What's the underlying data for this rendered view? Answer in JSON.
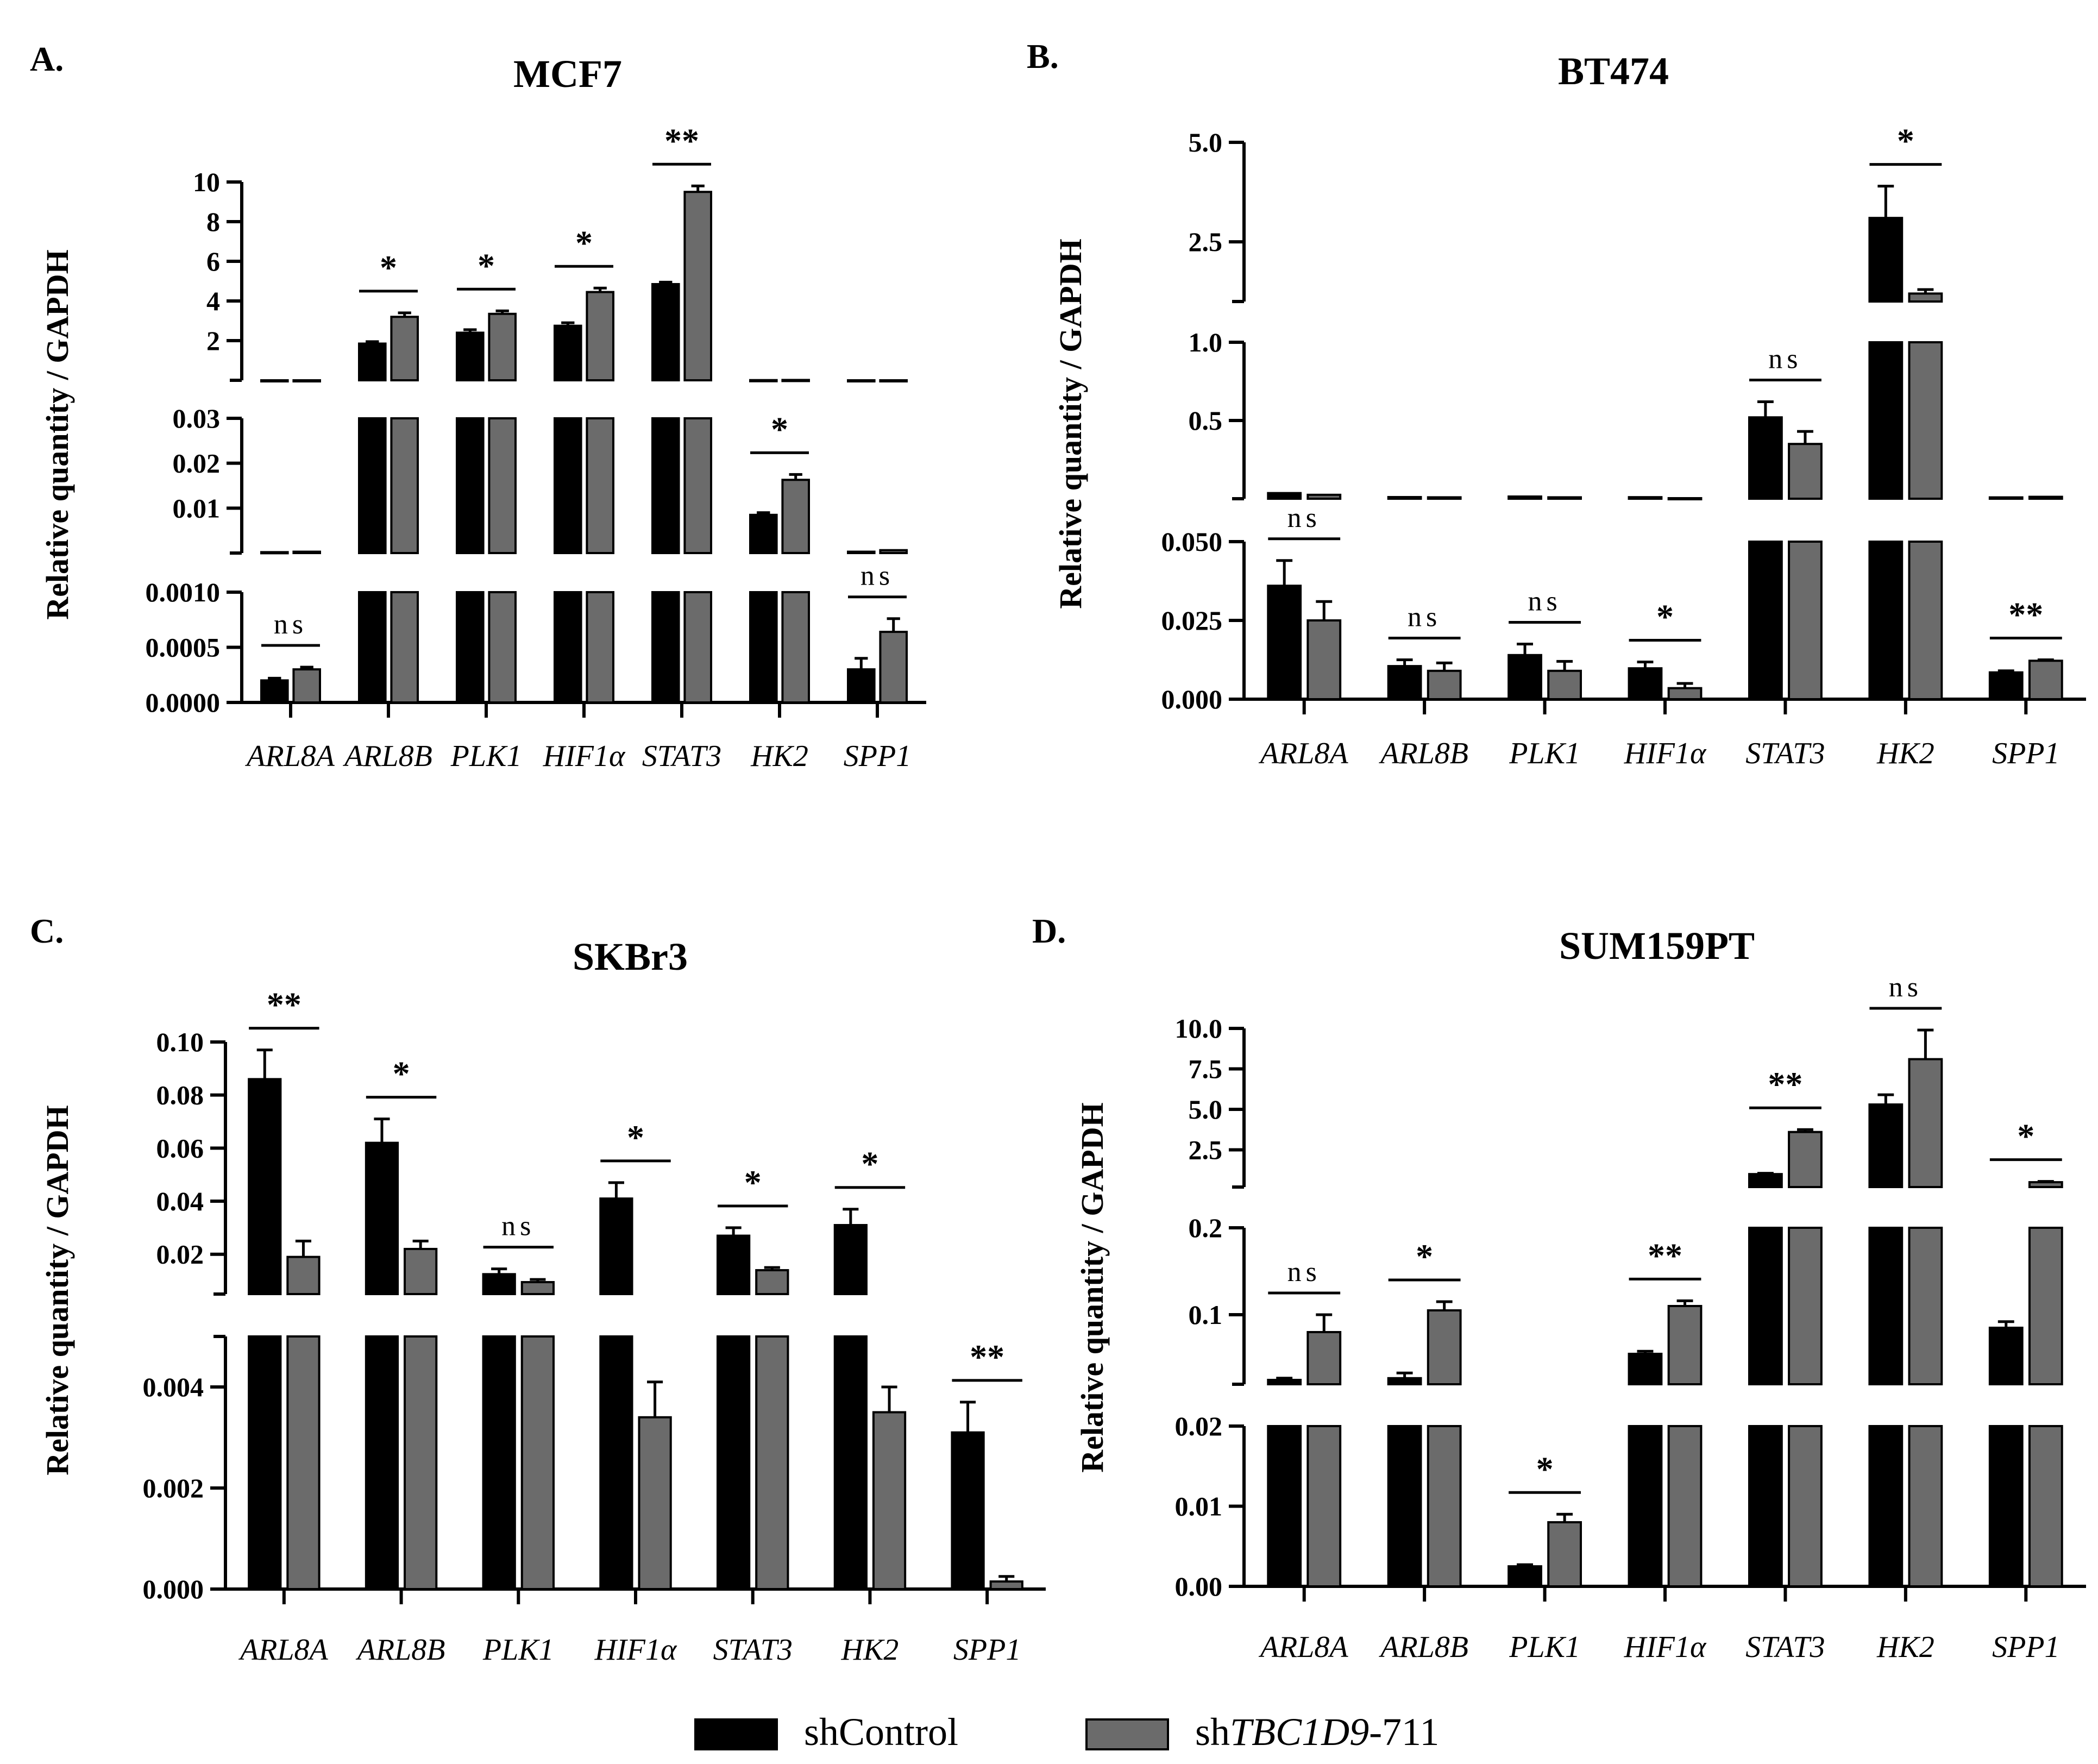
{
  "colors": {
    "shControl": "#000000",
    "shTBC1D9": "#6b6b6b",
    "axis": "#000000"
  },
  "legend": {
    "items": [
      {
        "name": "shControl",
        "label_parts": [
          "shControl"
        ]
      },
      {
        "name": "shTBC1D9-711",
        "label_parts": [
          "sh",
          "TBC1D9",
          "-711"
        ]
      }
    ]
  },
  "chart_data": [
    {
      "type": "bar",
      "panel_letter": "A.",
      "title": "MCF7",
      "ylabel": "Relative quantity / GAPDH",
      "categories": [
        "ARL8A",
        "ARL8B",
        "PLK1",
        "HIF1α",
        "STAT3",
        "HK2",
        "SPP1"
      ],
      "series": [
        {
          "name": "shControl",
          "values": [
            0.0002,
            1.85,
            2.4,
            2.75,
            4.85,
            0.0085,
            0.0003
          ],
          "errors": [
            2e-05,
            0.1,
            0.15,
            0.15,
            0.1,
            0.0005,
            0.0001
          ]
        },
        {
          "name": "shTBC1D9-711",
          "values": [
            0.0003,
            3.2,
            3.35,
            4.45,
            9.5,
            0.0163,
            0.00064
          ],
          "errors": [
            2e-05,
            0.2,
            0.15,
            0.2,
            0.3,
            0.0012,
            0.00012
          ]
        }
      ],
      "significance": [
        "ns",
        "*",
        "*",
        "*",
        "**",
        "*",
        "ns"
      ],
      "y_segments": [
        {
          "range": [
            0,
            0.001
          ],
          "ticks": [
            "0.0000",
            "0.0005",
            "0.0010"
          ],
          "tick_values": [
            0,
            0.0005,
            0.001
          ]
        },
        {
          "range": [
            0,
            0.03
          ],
          "ticks": [
            "0.01",
            "0.02",
            "0.03"
          ],
          "tick_values": [
            0.01,
            0.02,
            0.03
          ]
        },
        {
          "range": [
            0,
            10
          ],
          "ticks": [
            "2",
            "4",
            "6",
            "8",
            "10"
          ],
          "tick_values": [
            2,
            4,
            6,
            8,
            10
          ]
        }
      ]
    },
    {
      "type": "bar",
      "panel_letter": "B.",
      "title": "BT474",
      "ylabel": "Relative quantity / GAPDH",
      "categories": [
        "ARL8A",
        "ARL8B",
        "PLK1",
        "HIF1α",
        "STAT3",
        "HK2",
        "SPP1"
      ],
      "series": [
        {
          "name": "shControl",
          "values": [
            0.036,
            0.0105,
            0.014,
            0.0098,
            0.52,
            3.1,
            0.0085
          ],
          "errors": [
            0.008,
            0.002,
            0.0035,
            0.002,
            0.1,
            0.8,
            0.0005
          ]
        },
        {
          "name": "shTBC1D9-711",
          "values": [
            0.025,
            0.009,
            0.009,
            0.0035,
            0.35,
            1.2,
            0.0122
          ],
          "errors": [
            0.006,
            0.0025,
            0.003,
            0.0015,
            0.08,
            0.1,
            0.0003
          ]
        }
      ],
      "significance": [
        "ns",
        "ns",
        "ns",
        "*",
        "ns",
        "*",
        "**"
      ],
      "y_segments": [
        {
          "range": [
            0,
            0.05
          ],
          "ticks": [
            "0.000",
            "0.025",
            "0.050"
          ],
          "tick_values": [
            0,
            0.025,
            0.05
          ]
        },
        {
          "range": [
            0,
            1.0
          ],
          "ticks": [
            "0.5",
            "1.0"
          ],
          "tick_values": [
            0.5,
            1.0
          ]
        },
        {
          "range": [
            1.0,
            5.0
          ],
          "ticks": [
            "2.5",
            "5.0"
          ],
          "tick_values": [
            2.5,
            5.0
          ]
        }
      ]
    },
    {
      "type": "bar",
      "panel_letter": "C.",
      "title": "SKBr3",
      "ylabel": "Relative quantity / GAPDH",
      "categories": [
        "ARL8A",
        "ARL8B",
        "PLK1",
        "HIF1α",
        "STAT3",
        "HK2",
        "SPP1"
      ],
      "series": [
        {
          "name": "shControl",
          "values": [
            0.086,
            0.062,
            0.0125,
            0.041,
            0.027,
            0.031,
            0.0031
          ],
          "errors": [
            0.011,
            0.009,
            0.002,
            0.006,
            0.003,
            0.006,
            0.0006
          ]
        },
        {
          "name": "shTBC1D9-711",
          "values": [
            0.019,
            0.022,
            0.0095,
            0.0034,
            0.014,
            0.0035,
            0.00015
          ],
          "errors": [
            0.006,
            0.003,
            0.001,
            0.0007,
            0.001,
            0.0005,
            0.0001
          ]
        }
      ],
      "significance": [
        "**",
        "*",
        "ns",
        "*",
        "*",
        "*",
        "**"
      ],
      "y_segments": [
        {
          "range": [
            0,
            0.005
          ],
          "ticks": [
            "0.000",
            "0.002",
            "0.004"
          ],
          "tick_values": [
            0,
            0.002,
            0.004
          ]
        },
        {
          "range": [
            0.005,
            0.1
          ],
          "ticks": [
            "0.02",
            "0.04",
            "0.06",
            "0.08",
            "0.10"
          ],
          "tick_values": [
            0.02,
            0.04,
            0.06,
            0.08,
            0.1
          ]
        }
      ]
    },
    {
      "type": "bar",
      "panel_letter": "D.",
      "title": "SUM159PT",
      "ylabel": "Relative quantity / GAPDH",
      "categories": [
        "ARL8A",
        "ARL8B",
        "PLK1",
        "HIF1α",
        "STAT3",
        "HK2",
        "SPP1"
      ],
      "series": [
        {
          "name": "shControl",
          "values": [
            0.025,
            0.027,
            0.0025,
            0.055,
            1.0,
            5.3,
            0.085
          ],
          "errors": [
            0.002,
            0.006,
            0.0002,
            0.003,
            0.05,
            0.6,
            0.007
          ]
        },
        {
          "name": "shTBC1D9-711",
          "values": [
            0.08,
            0.105,
            0.008,
            0.11,
            3.6,
            8.1,
            0.5
          ],
          "errors": [
            0.02,
            0.01,
            0.001,
            0.006,
            0.15,
            1.8,
            0.05
          ]
        }
      ],
      "significance": [
        "ns",
        "*",
        "*",
        "**",
        "**",
        "ns",
        "*"
      ],
      "y_segments": [
        {
          "range": [
            0,
            0.02
          ],
          "ticks": [
            "0.00",
            "0.01",
            "0.02"
          ],
          "tick_values": [
            0,
            0.01,
            0.02
          ]
        },
        {
          "range": [
            0.02,
            0.2
          ],
          "ticks": [
            "0.1",
            "0.2"
          ],
          "tick_values": [
            0.1,
            0.2
          ]
        },
        {
          "range": [
            0.2,
            10.0
          ],
          "ticks": [
            "2.5",
            "5.0",
            "7.5",
            "10.0"
          ],
          "tick_values": [
            2.5,
            5.0,
            7.5,
            10.0
          ]
        }
      ]
    }
  ]
}
